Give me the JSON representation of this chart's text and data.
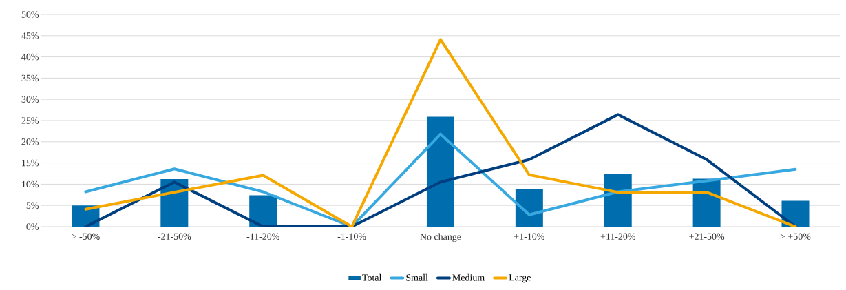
{
  "chart_data": {
    "type": "bar",
    "categories": [
      "> -50%",
      "-21-50%",
      "-11-20%",
      "-1-10%",
      "No change",
      "+1-10%",
      "+11-20%",
      "+21-50%",
      "> +50%"
    ],
    "series": [
      {
        "name": "Total",
        "color": "#006eae",
        "values": [
          5.0,
          11.2,
          7.4,
          0,
          25.9,
          8.8,
          12.4,
          11.3,
          6.1
        ]
      },
      {
        "name": "Small",
        "type": "line",
        "color": "#38a8e0",
        "values": [
          8.2,
          13.6,
          8.2,
          0,
          21.8,
          2.8,
          8.2,
          10.8,
          13.5
        ]
      },
      {
        "name": "Medium",
        "type": "line",
        "color": "#003f7f",
        "values": [
          0,
          10.5,
          0,
          0,
          10.5,
          15.8,
          26.4,
          15.8,
          0
        ]
      },
      {
        "name": "Large",
        "type": "line",
        "color": "#f5a800",
        "values": [
          4.1,
          8.1,
          12.1,
          0,
          44.1,
          12.2,
          8.1,
          8.1,
          0
        ]
      }
    ],
    "ylim": [
      0,
      50
    ],
    "yticks": [
      {
        "value": 0,
        "label": "0%"
      },
      {
        "value": 5,
        "label": "5%"
      },
      {
        "value": 10,
        "label": "10%"
      },
      {
        "value": 15,
        "label": "15%"
      },
      {
        "value": 20,
        "label": "20%"
      },
      {
        "value": 25,
        "label": "25%"
      },
      {
        "value": 30,
        "label": "30%"
      },
      {
        "value": 35,
        "label": "35%"
      },
      {
        "value": 40,
        "label": "40%"
      },
      {
        "value": 45,
        "label": "45%"
      },
      {
        "value": 50,
        "label": "50%"
      }
    ],
    "grid": "y",
    "legend": "bottom",
    "marker": "none",
    "line_style": "solid"
  }
}
